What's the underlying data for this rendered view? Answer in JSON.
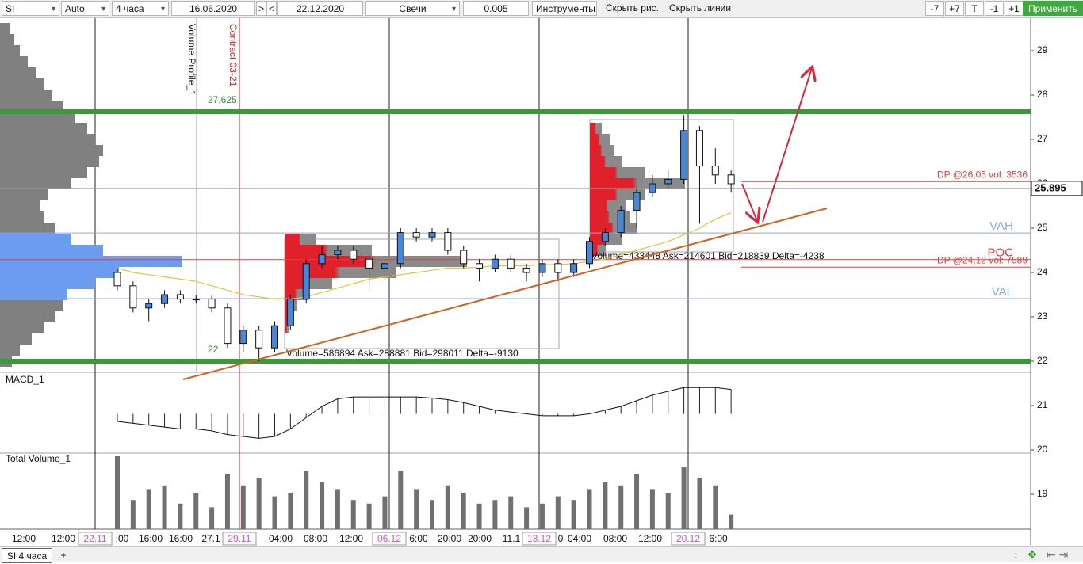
{
  "toolbar": {
    "symbol": "SI",
    "scale": "Auto",
    "period": "4 часа",
    "date_from": "16.06.2020",
    "next": ">",
    "prev": "<",
    "date_to": "22.12.2020",
    "chart_style": "Свечи",
    "step": "0.005",
    "tools": "Инструменты",
    "hide_drawings": "Скрыть рис.",
    "hide_lines": "Скрыть линии",
    "buttons": [
      "-7",
      "+7",
      "T",
      "-1",
      "+1"
    ],
    "apply": "Применить"
  },
  "tabs": {
    "active": "SI 4 часа",
    "add": "+"
  },
  "chart_data": {
    "type": "candlestick",
    "ylim": [
      18.2,
      29.75
    ],
    "yticks": [
      19,
      20,
      21,
      22,
      23,
      24,
      25,
      26,
      27,
      28,
      29
    ],
    "colors": {
      "up": "#4a86d8",
      "down": "#ffffff"
    },
    "open": [
      24.0,
      23.7,
      23.2,
      23.3,
      23.5,
      23.4,
      23.4,
      23.2,
      22.4,
      22.7,
      22.3,
      22.8,
      23.4,
      24.2,
      24.4,
      24.5,
      24.3,
      24.1,
      24.2,
      24.9,
      24.8,
      24.9,
      24.5,
      24.2,
      24.1,
      24.3,
      24.1,
      24.0,
      24.2,
      24.0,
      24.2,
      24.7,
      24.9,
      25.4,
      25.8,
      26.0,
      26.1,
      27.2,
      26.4,
      26.2
    ],
    "high": [
      24.1,
      23.8,
      23.4,
      23.6,
      23.6,
      23.5,
      23.5,
      23.3,
      22.8,
      22.8,
      22.9,
      23.5,
      24.3,
      24.6,
      24.6,
      24.6,
      24.4,
      24.3,
      25.0,
      25.0,
      25.0,
      25.0,
      24.6,
      24.3,
      24.4,
      24.4,
      24.2,
      24.3,
      24.3,
      24.3,
      24.8,
      25.0,
      25.5,
      25.9,
      26.2,
      26.3,
      27.55,
      27.3,
      26.8,
      26.3
    ],
    "low": [
      23.6,
      23.1,
      22.9,
      23.2,
      23.3,
      23.3,
      23.1,
      22.3,
      22.2,
      22.0,
      22.2,
      22.7,
      23.3,
      24.1,
      24.3,
      24.2,
      23.7,
      23.8,
      24.1,
      24.7,
      24.7,
      24.4,
      24.1,
      23.8,
      24.0,
      24.0,
      23.8,
      23.9,
      23.8,
      23.9,
      24.1,
      24.6,
      24.8,
      25.0,
      25.7,
      25.9,
      26.0,
      25.1,
      26.0,
      25.8
    ],
    "close": [
      23.7,
      23.2,
      23.3,
      23.5,
      23.4,
      23.4,
      23.2,
      22.4,
      22.7,
      22.3,
      22.8,
      23.4,
      24.2,
      24.4,
      24.5,
      24.3,
      24.1,
      24.2,
      24.9,
      24.8,
      24.9,
      24.5,
      24.2,
      24.1,
      24.3,
      24.1,
      24.0,
      24.2,
      24.0,
      24.2,
      24.7,
      24.9,
      25.4,
      25.8,
      26.0,
      26.1,
      27.2,
      26.4,
      26.2,
      26.0
    ],
    "ma": {
      "color": "#e8c23a",
      "values": [
        24.1,
        24.0,
        23.95,
        23.9,
        23.85,
        23.8,
        23.7,
        23.6,
        23.5,
        23.45,
        23.4,
        23.4,
        23.45,
        23.55,
        23.65,
        23.75,
        23.85,
        23.9,
        23.95,
        24.0,
        24.05,
        24.1,
        24.1,
        24.12,
        24.15,
        24.15,
        24.15,
        24.18,
        24.18,
        24.2,
        24.25,
        24.3,
        24.4,
        24.5,
        24.6,
        24.7,
        24.85,
        25.0,
        25.2,
        25.35
      ]
    },
    "last_price": 25.895,
    "levels": [
      {
        "label": "VAH",
        "value": 24.89,
        "color": "#8fa8e8"
      },
      {
        "label": "POC",
        "value": 24.29,
        "color": "#e04040"
      },
      {
        "label": "VAL",
        "value": 23.41,
        "color": "#8fa8e8"
      }
    ],
    "dp_lines": [
      {
        "label": "DP @26,05 vol: 3536",
        "value": 26.05
      },
      {
        "label": "DP @24,12 vol: 7589",
        "value": 24.12
      }
    ],
    "support_lines": [
      {
        "value": 27.625,
        "label": "27,625"
      },
      {
        "value": 22,
        "label": "22"
      }
    ],
    "vertical_labels": [
      "Volume Profile_1",
      "Contract 03-21"
    ],
    "profile": {
      "color": "#808080",
      "va_color": "#6b9cf0",
      "prices": [
        22.0,
        22.25,
        22.5,
        22.75,
        23.0,
        23.25,
        23.5,
        23.75,
        24.0,
        24.25,
        24.5,
        24.75,
        25.0,
        25.25,
        25.5,
        25.75,
        26.0,
        26.25,
        26.5,
        26.75,
        27.0,
        27.25,
        27.5,
        27.75,
        28.0,
        28.25,
        28.5,
        28.75,
        29.0,
        29.25,
        29.5
      ],
      "volumes": [
        15,
        25,
        40,
        55,
        70,
        80,
        85,
        120,
        150,
        230,
        130,
        90,
        70,
        55,
        50,
        60,
        90,
        110,
        125,
        130,
        120,
        110,
        95,
        80,
        65,
        55,
        45,
        35,
        25,
        18,
        12
      ]
    },
    "sessions": [
      {
        "text": "Volume=586894  Ask=288881  Bid=298011  Delta=-9130",
        "prices": [
          22.75,
          23.0,
          23.25,
          23.5,
          23.75,
          24.0,
          24.25,
          24.5,
          24.75
        ],
        "volumes": [
          5,
          8,
          15,
          30,
          60,
          140,
          230,
          110,
          40
        ]
      },
      {
        "text": "Volume=433448  Ask=214601  Bid=218839  Delta=-4238",
        "prices": [
          24.5,
          24.75,
          25.0,
          25.25,
          25.5,
          25.75,
          26.0,
          26.25,
          26.5,
          26.75,
          27.0,
          27.25
        ],
        "volumes": [
          20,
          40,
          60,
          50,
          45,
          70,
          120,
          70,
          40,
          30,
          25,
          15
        ]
      }
    ],
    "macd": {
      "title": "MACD_1",
      "ylim": [
        -1,
        1
      ],
      "values": [
        -0.2,
        -0.25,
        -0.3,
        -0.35,
        -0.4,
        -0.4,
        -0.45,
        -0.55,
        -0.6,
        -0.65,
        -0.6,
        -0.4,
        -0.1,
        0.2,
        0.4,
        0.45,
        0.45,
        0.45,
        0.45,
        0.45,
        0.42,
        0.38,
        0.3,
        0.2,
        0.1,
        0.05,
        0.0,
        -0.05,
        -0.05,
        -0.05,
        0.0,
        0.1,
        0.2,
        0.35,
        0.5,
        0.6,
        0.7,
        0.7,
        0.7,
        0.65
      ]
    },
    "volume": {
      "title": "Total Volume_1",
      "ylim": [
        0,
        100
      ],
      "color": "#707070",
      "values": [
        100,
        40,
        55,
        60,
        35,
        50,
        30,
        75,
        60,
        70,
        45,
        50,
        80,
        65,
        55,
        40,
        35,
        45,
        80,
        55,
        40,
        60,
        50,
        35,
        40,
        45,
        30,
        35,
        45,
        40,
        55,
        65,
        60,
        75,
        55,
        50,
        85,
        70,
        60,
        20
      ]
    },
    "xlabels": [
      {
        "text": "12:00"
      },
      {
        "text": "12:00"
      },
      {
        "text": "22.11",
        "highlight": true
      },
      {
        "text": ":00"
      },
      {
        "text": "16:00"
      },
      {
        "text": "16:00"
      },
      {
        "text": "27.1"
      },
      {
        "text": "29.11",
        "highlight": true
      },
      {
        "text": "04:00"
      },
      {
        "text": "08:00"
      },
      {
        "text": "12:00"
      },
      {
        "text": "06.12",
        "highlight": true
      },
      {
        "text": "6:00"
      },
      {
        "text": "20:00"
      },
      {
        "text": "20:00"
      },
      {
        "text": "11.1"
      },
      {
        "text": "13.12",
        "highlight": true
      },
      {
        "text": "0"
      },
      {
        "text": "04:00"
      },
      {
        "text": "08:00"
      },
      {
        "text": "12:00"
      },
      {
        "text": "20.12",
        "highlight": true
      },
      {
        "text": "6:00"
      }
    ]
  }
}
